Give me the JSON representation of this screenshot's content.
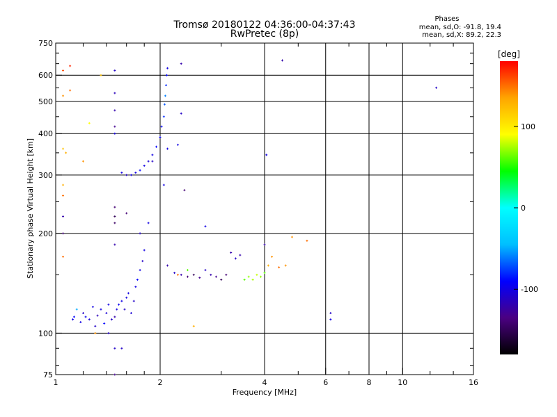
{
  "header": {
    "title_line1": "Tromsø 20180122 04:36:00-04:37:43",
    "title_line2": "RwPretec (8p)"
  },
  "stats": {
    "heading": "Phases",
    "line_o": "mean, sd,O: -91.8, 19.4",
    "line_x": "mean, sd,X: 89.2, 22.3"
  },
  "colorbar": {
    "unit_label": "[deg]",
    "tick_labels": [
      "100",
      "0",
      "-100"
    ],
    "tick_values": [
      100,
      0,
      -100
    ],
    "range": [
      -180,
      180
    ],
    "palette": [
      "#000000",
      "#4b0082",
      "#0000ff",
      "#00bfff",
      "#00ffff",
      "#00ff00",
      "#ffff00",
      "#ffa500",
      "#ff0000"
    ]
  },
  "chart_data": {
    "type": "scatter",
    "xlabel": "Frequency [MHz]",
    "ylabel": "Stationary phase Virtual Height [km]",
    "xscale": "log",
    "yscale": "log",
    "xlim": [
      1,
      16
    ],
    "ylim": [
      75,
      750
    ],
    "xticks": [
      1,
      2,
      4,
      6,
      8,
      10,
      16
    ],
    "xtick_labels": [
      "1",
      "2",
      "4",
      "6",
      "8",
      "10",
      "16"
    ],
    "yticks": [
      75,
      100,
      200,
      300,
      400,
      500,
      600,
      750
    ],
    "ytick_labels": [
      "75",
      "100",
      "200",
      "300",
      "400",
      "500",
      "600",
      "750"
    ],
    "x_gridlines": [
      2,
      4,
      6,
      8,
      10
    ],
    "y_gridlines": [
      100,
      200,
      300,
      400,
      500,
      600
    ],
    "color_encoding": "phase (deg)",
    "points": [
      [
        1.05,
        620,
        160
      ],
      [
        1.05,
        520,
        140
      ],
      [
        1.05,
        360,
        120
      ],
      [
        1.05,
        280,
        130
      ],
      [
        1.05,
        260,
        150
      ],
      [
        1.05,
        225,
        -120
      ],
      [
        1.05,
        200,
        -140
      ],
      [
        1.05,
        170,
        150
      ],
      [
        1.07,
        350,
        130
      ],
      [
        1.1,
        640,
        170
      ],
      [
        1.1,
        540,
        150
      ],
      [
        1.12,
        110,
        -100
      ],
      [
        1.13,
        112,
        -90
      ],
      [
        1.15,
        118,
        -50
      ],
      [
        1.18,
        108,
        -100
      ],
      [
        1.2,
        115,
        -110
      ],
      [
        1.22,
        112,
        -95
      ],
      [
        1.25,
        110,
        -105
      ],
      [
        1.28,
        120,
        -100
      ],
      [
        1.3,
        105,
        -110
      ],
      [
        1.32,
        113,
        -115
      ],
      [
        1.35,
        118,
        -100
      ],
      [
        1.38,
        107,
        -90
      ],
      [
        1.4,
        115,
        -105
      ],
      [
        1.42,
        122,
        -100
      ],
      [
        1.45,
        110,
        -110
      ],
      [
        1.48,
        112,
        -120
      ],
      [
        1.5,
        118,
        -100
      ],
      [
        1.52,
        122,
        -95
      ],
      [
        1.55,
        125,
        -100
      ],
      [
        1.58,
        118,
        -110
      ],
      [
        1.6,
        128,
        -100
      ],
      [
        1.62,
        132,
        -100
      ],
      [
        1.65,
        115,
        -105
      ],
      [
        1.68,
        125,
        -110
      ],
      [
        1.7,
        138,
        -100
      ],
      [
        1.72,
        145,
        -90
      ],
      [
        1.75,
        155,
        -100
      ],
      [
        1.78,
        165,
        -110
      ],
      [
        1.8,
        178,
        -100
      ],
      [
        1.25,
        430,
        90
      ],
      [
        1.35,
        600,
        120
      ],
      [
        1.48,
        620,
        -110
      ],
      [
        1.48,
        530,
        -115
      ],
      [
        1.48,
        470,
        -120
      ],
      [
        1.48,
        420,
        -130
      ],
      [
        1.48,
        400,
        -100
      ],
      [
        1.48,
        240,
        -140
      ],
      [
        1.48,
        225,
        -150
      ],
      [
        1.48,
        215,
        -145
      ],
      [
        1.48,
        185,
        -120
      ],
      [
        1.48,
        90,
        -110
      ],
      [
        1.55,
        90,
        -110
      ],
      [
        1.6,
        230,
        -140
      ],
      [
        1.48,
        75,
        -130
      ],
      [
        1.75,
        200,
        -110
      ],
      [
        1.85,
        215,
        -100
      ],
      [
        1.55,
        305,
        -100
      ],
      [
        1.6,
        300,
        -110
      ],
      [
        1.65,
        300,
        -100
      ],
      [
        1.7,
        305,
        -100
      ],
      [
        1.75,
        310,
        -90
      ],
      [
        1.8,
        320,
        -100
      ],
      [
        1.85,
        330,
        -105
      ],
      [
        1.9,
        345,
        -100
      ],
      [
        1.95,
        365,
        -90
      ],
      [
        2.0,
        390,
        -95
      ],
      [
        2.02,
        420,
        -90
      ],
      [
        2.05,
        450,
        -80
      ],
      [
        2.06,
        490,
        -70
      ],
      [
        2.07,
        520,
        -60
      ],
      [
        2.08,
        560,
        -80
      ],
      [
        2.09,
        600,
        -90
      ],
      [
        2.1,
        630,
        -100
      ],
      [
        2.05,
        280,
        -100
      ],
      [
        2.3,
        650,
        -120
      ],
      [
        2.3,
        460,
        -110
      ],
      [
        2.35,
        270,
        -140
      ],
      [
        2.25,
        370,
        -100
      ],
      [
        2.7,
        210,
        -100
      ],
      [
        2.1,
        160,
        -120
      ],
      [
        2.2,
        152,
        -110
      ],
      [
        2.3,
        150,
        -120
      ],
      [
        2.4,
        148,
        -140
      ],
      [
        2.5,
        150,
        -150
      ],
      [
        2.6,
        147,
        -130
      ],
      [
        2.7,
        155,
        -110
      ],
      [
        2.8,
        150,
        -120
      ],
      [
        2.9,
        148,
        -130
      ],
      [
        3.0,
        145,
        -150
      ],
      [
        3.1,
        150,
        -140
      ],
      [
        3.2,
        175,
        -120
      ],
      [
        3.3,
        168,
        -110
      ],
      [
        3.4,
        172,
        -120
      ],
      [
        3.5,
        145,
        60
      ],
      [
        3.6,
        148,
        70
      ],
      [
        3.7,
        145,
        75
      ],
      [
        3.8,
        150,
        80
      ],
      [
        3.9,
        148,
        70
      ],
      [
        4.0,
        152,
        60
      ],
      [
        4.1,
        160,
        130
      ],
      [
        4.2,
        170,
        140
      ],
      [
        4.4,
        158,
        150
      ],
      [
        4.6,
        160,
        140
      ],
      [
        5.3,
        190,
        150
      ],
      [
        4.5,
        665,
        -120
      ],
      [
        4.05,
        345,
        -100
      ],
      [
        6.2,
        115,
        -110
      ],
      [
        6.2,
        110,
        -100
      ],
      [
        12.5,
        550,
        -110
      ],
      [
        2.5,
        105,
        130
      ],
      [
        1.42,
        100,
        -110
      ],
      [
        2.4,
        155,
        60
      ],
      [
        2.25,
        150,
        150
      ],
      [
        4.0,
        185,
        -120
      ],
      [
        4.8,
        195,
        140
      ],
      [
        1.2,
        330,
        140
      ],
      [
        1.3,
        100,
        140
      ],
      [
        1.9,
        330,
        -110
      ],
      [
        2.1,
        360,
        -100
      ]
    ]
  }
}
